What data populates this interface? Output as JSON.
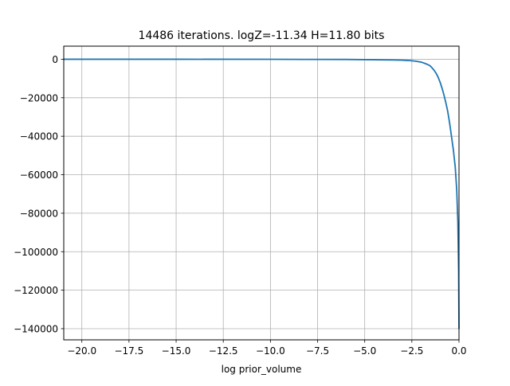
{
  "chart_data": {
    "type": "line",
    "title": "14486 iterations. logZ=-11.34 H=11.80 bits",
    "xlabel": "log prior_volume",
    "ylabel": "",
    "xlim": [
      -20.96,
      0.0
    ],
    "ylim": [
      -145800,
      6800
    ],
    "grid": true,
    "xticks": [
      -20.0,
      -17.5,
      -15.0,
      -12.5,
      -10.0,
      -7.5,
      -5.0,
      -2.5,
      0.0
    ],
    "xtick_labels": [
      "−20.0",
      "−17.5",
      "−15.0",
      "−12.5",
      "−10.0",
      "−7.5",
      "−5.0",
      "−2.5",
      "0.0"
    ],
    "yticks": [
      0,
      -20000,
      -40000,
      -60000,
      -80000,
      -100000,
      -120000,
      -140000
    ],
    "ytick_labels": [
      "0",
      "−20000",
      "−40000",
      "−60000",
      "−80000",
      "−100000",
      "−120000",
      "−140000"
    ],
    "series": [
      {
        "color": "#1f77b4",
        "x": [
          -20.96,
          -15.0,
          -10.0,
          -6.0,
          -4.5,
          -3.5,
          -3.0,
          -2.6,
          -2.3,
          -2.0,
          -1.8,
          -1.6,
          -1.5,
          -1.4,
          -1.3,
          -1.2,
          -1.1,
          -1.0,
          -0.9,
          -0.8,
          -0.7,
          -0.6,
          -0.5,
          -0.4,
          -0.3,
          -0.2,
          -0.12,
          -0.06,
          -0.02,
          0.0
        ],
        "y": [
          0,
          0,
          -30,
          -100,
          -250,
          -400,
          -500,
          -700,
          -1000,
          -1500,
          -2200,
          -3000,
          -3700,
          -4800,
          -6000,
          -7500,
          -9500,
          -12000,
          -15000,
          -18500,
          -22500,
          -27000,
          -33000,
          -40000,
          -47000,
          -56000,
          -68000,
          -85000,
          -110000,
          -140000
        ]
      }
    ]
  }
}
